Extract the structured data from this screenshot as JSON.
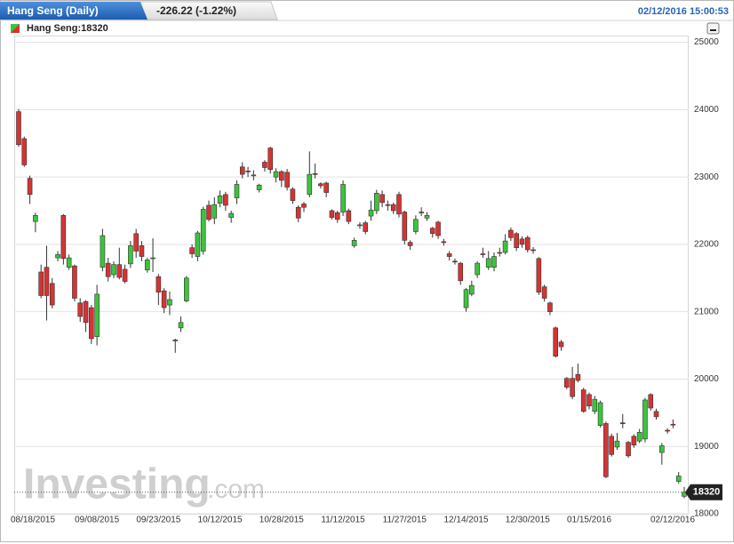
{
  "chart_data": {
    "type": "candlestick",
    "title": "Hang Seng (Daily)",
    "change": "-226.22 (-1.22%)",
    "timestamp": "02/12/2016 15:00:53",
    "legend": "Hang Seng:18320",
    "brand": "Investing",
    "brand_suffix": ".com",
    "up_color": "#3cc43c",
    "down_color": "#d63333",
    "grid": true,
    "ylim": [
      18000,
      25100
    ],
    "yticks": [
      18000,
      19000,
      20000,
      21000,
      22000,
      23000,
      24000,
      25000
    ],
    "categories": [
      "08/18/2015",
      null,
      null,
      null,
      null,
      null,
      null,
      null,
      null,
      null,
      null,
      null,
      null,
      null,
      "09/08/2015",
      null,
      null,
      null,
      null,
      null,
      null,
      null,
      null,
      null,
      null,
      "09/23/2015",
      null,
      null,
      null,
      null,
      null,
      null,
      null,
      null,
      null,
      null,
      "10/12/2015",
      null,
      null,
      null,
      null,
      null,
      null,
      null,
      null,
      null,
      null,
      "10/28/2015",
      null,
      null,
      null,
      null,
      null,
      null,
      null,
      null,
      null,
      null,
      "11/12/2015",
      null,
      null,
      null,
      null,
      null,
      null,
      null,
      null,
      null,
      null,
      "11/27/2015",
      null,
      null,
      null,
      null,
      null,
      null,
      null,
      null,
      null,
      null,
      "12/14/2015",
      null,
      null,
      null,
      null,
      null,
      null,
      null,
      null,
      null,
      null,
      "12/30/2015",
      null,
      null,
      null,
      null,
      null,
      null,
      null,
      null,
      null,
      null,
      "01/15/2016",
      null,
      null,
      null,
      null,
      null,
      null,
      null,
      null,
      null,
      null,
      null,
      null,
      null,
      null,
      null,
      null,
      "02/12/2016"
    ],
    "open": [
      23970,
      23570,
      22980,
      22340,
      21590,
      21660,
      21420,
      21800,
      22430,
      21660,
      21680,
      21130,
      21150,
      21060,
      20630,
      21660,
      21720,
      21550,
      21700,
      21630,
      21710,
      22160,
      21980,
      21620,
      21790,
      21520,
      21310,
      21100,
      20580,
      20760,
      21160,
      21950,
      21820,
      21900,
      22580,
      22390,
      22610,
      22740,
      22400,
      22690,
      23150,
      23090,
      23020,
      22810,
      23220,
      23430,
      23000,
      23080,
      23070,
      22820,
      22550,
      22600,
      22740,
      23050,
      22900,
      22910,
      22500,
      22470,
      22480,
      22500,
      21980,
      22290,
      22320,
      22420,
      22500,
      22740,
      22590,
      22590,
      22740,
      22480,
      22030,
      22190,
      22480,
      22390,
      22240,
      22330,
      22040,
      21860,
      21750,
      21720,
      21060,
      21260,
      21550,
      21860,
      21660,
      21660,
      21880,
      21880,
      22210,
      22160,
      22080,
      22100,
      21920,
      21790,
      21370,
      21130,
      20760,
      20550,
      20010,
      20010,
      20070,
      19840,
      19770,
      19520,
      19310,
      19340,
      19150,
      18990,
      19350,
      19060,
      19150,
      19080,
      19110,
      19770,
      19520,
      18910,
      19240,
      19330,
      18480,
      18260
    ],
    "high": [
      24010,
      23600,
      23020,
      22470,
      21700,
      21980,
      21500,
      21900,
      22450,
      21850,
      21700,
      21200,
      21170,
      21100,
      21400,
      22230,
      21800,
      21750,
      21950,
      21700,
      22050,
      22230,
      22050,
      21800,
      22090,
      21560,
      21350,
      21300,
      20600,
      20930,
      21530,
      22000,
      22200,
      22560,
      22650,
      22700,
      22800,
      22780,
      22500,
      22950,
      23220,
      23150,
      23100,
      22900,
      23250,
      23450,
      23130,
      23100,
      23120,
      22850,
      22580,
      22630,
      23380,
      23200,
      22920,
      22930,
      22520,
      22500,
      22950,
      22530,
      22100,
      22330,
      22350,
      22650,
      22810,
      22800,
      22650,
      22620,
      22780,
      22500,
      22060,
      22430,
      22550,
      22480,
      22260,
      22350,
      22080,
      21900,
      21790,
      21740,
      21350,
      21460,
      21750,
      21950,
      21900,
      21880,
      21950,
      22150,
      22250,
      22180,
      22120,
      22130,
      21960,
      21810,
      21400,
      21150,
      20780,
      20580,
      20030,
      20180,
      20230,
      19870,
      19800,
      19750,
      19680,
      19370,
      19190,
      19200,
      19480,
      19080,
      19180,
      19260,
      19720,
      19790,
      19560,
      19050,
      19270,
      19400,
      18620,
      18400
    ],
    "low": [
      23450,
      23150,
      22600,
      22180,
      21200,
      20870,
      21050,
      21750,
      21700,
      21620,
      21150,
      20850,
      20700,
      20520,
      20500,
      21600,
      21450,
      21500,
      21480,
      21420,
      21650,
      21800,
      21750,
      21580,
      21590,
      21100,
      20980,
      20950,
      20390,
      20700,
      21140,
      21800,
      21750,
      21850,
      22340,
      22300,
      22550,
      22500,
      22320,
      22600,
      22980,
      23000,
      22950,
      22770,
      23080,
      23050,
      22920,
      22850,
      22800,
      22600,
      22330,
      22480,
      22700,
      22980,
      22830,
      22700,
      22370,
      22320,
      22420,
      22300,
      21950,
      22230,
      22150,
      22350,
      22450,
      22550,
      22500,
      22450,
      22400,
      22000,
      21920,
      22150,
      22420,
      22350,
      22100,
      22080,
      21980,
      21760,
      21700,
      21400,
      21000,
      21230,
      21500,
      21800,
      21620,
      21600,
      21820,
      21850,
      22050,
      21900,
      21950,
      21880,
      21860,
      21250,
      21150,
      20950,
      20320,
      20420,
      19850,
      19700,
      19950,
      19500,
      19550,
      19480,
      19280,
      18530,
      18850,
      18950,
      19270,
      18830,
      18980,
      19050,
      19060,
      19530,
      19400,
      18730,
      19190,
      19270,
      18450,
      18230
    ],
    "close": [
      23480,
      23180,
      22740,
      22430,
      21240,
      21240,
      21100,
      21850,
      21790,
      21800,
      21200,
      20930,
      20840,
      20600,
      21260,
      22130,
      21520,
      21700,
      21510,
      21450,
      21980,
      21900,
      21820,
      21770,
      21800,
      21290,
      21060,
      21180,
      20570,
      20840,
      21500,
      21860,
      22170,
      22520,
      22370,
      22590,
      22720,
      22580,
      22460,
      22890,
      23040,
      23080,
      23030,
      22880,
      23140,
      23110,
      23080,
      22950,
      22850,
      22650,
      22390,
      22550,
      23040,
      23040,
      22870,
      22770,
      22400,
      22370,
      22890,
      22340,
      22060,
      22280,
      22190,
      22510,
      22760,
      22620,
      22580,
      22500,
      22450,
      22060,
      21980,
      22370,
      22470,
      22430,
      22160,
      22130,
      22030,
      21820,
      21740,
      21460,
      21330,
      21390,
      21720,
      21850,
      21790,
      21820,
      21870,
      22050,
      22100,
      21950,
      22000,
      21920,
      21910,
      21290,
      21200,
      21000,
      20340,
      20480,
      19880,
      19740,
      19980,
      19520,
      19600,
      19700,
      19650,
      18550,
      18880,
      19080,
      19340,
      18860,
      19020,
      19210,
      19690,
      19570,
      19440,
      19010,
      19230,
      19320,
      18560,
      18320
    ]
  }
}
